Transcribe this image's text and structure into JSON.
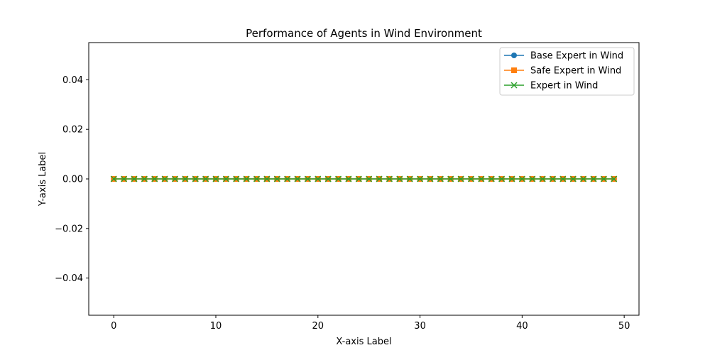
{
  "chart_data": {
    "type": "line",
    "title": "Performance of Agents in Wind Environment",
    "xlabel": "X-axis Label",
    "ylabel": "Y-axis Label",
    "xlim": [
      -2.45,
      51.45
    ],
    "ylim": [
      -0.055,
      0.055
    ],
    "xticks": [
      0,
      10,
      20,
      30,
      40,
      50
    ],
    "yticks": [
      -0.04,
      -0.02,
      0.0,
      0.02,
      0.04
    ],
    "ytick_labels": [
      "−0.04",
      "−0.02",
      "0.00",
      "0.02",
      "0.04"
    ],
    "grid": false,
    "legend_position": "top-right",
    "x": [
      0,
      1,
      2,
      3,
      4,
      5,
      6,
      7,
      8,
      9,
      10,
      11,
      12,
      13,
      14,
      15,
      16,
      17,
      18,
      19,
      20,
      21,
      22,
      23,
      24,
      25,
      26,
      27,
      28,
      29,
      30,
      31,
      32,
      33,
      34,
      35,
      36,
      37,
      38,
      39,
      40,
      41,
      42,
      43,
      44,
      45,
      46,
      47,
      48,
      49
    ],
    "series": [
      {
        "name": "Base Expert in Wind",
        "color": "#1f77b4",
        "marker": "circle",
        "values": [
          0,
          0,
          0,
          0,
          0,
          0,
          0,
          0,
          0,
          0,
          0,
          0,
          0,
          0,
          0,
          0,
          0,
          0,
          0,
          0,
          0,
          0,
          0,
          0,
          0,
          0,
          0,
          0,
          0,
          0,
          0,
          0,
          0,
          0,
          0,
          0,
          0,
          0,
          0,
          0,
          0,
          0,
          0,
          0,
          0,
          0,
          0,
          0,
          0,
          0
        ]
      },
      {
        "name": "Safe Expert in Wind",
        "color": "#ff7f0e",
        "marker": "square",
        "values": [
          0,
          0,
          0,
          0,
          0,
          0,
          0,
          0,
          0,
          0,
          0,
          0,
          0,
          0,
          0,
          0,
          0,
          0,
          0,
          0,
          0,
          0,
          0,
          0,
          0,
          0,
          0,
          0,
          0,
          0,
          0,
          0,
          0,
          0,
          0,
          0,
          0,
          0,
          0,
          0,
          0,
          0,
          0,
          0,
          0,
          0,
          0,
          0,
          0,
          0
        ]
      },
      {
        "name": "Expert in Wind",
        "color": "#2ca02c",
        "marker": "x",
        "values": [
          0,
          0,
          0,
          0,
          0,
          0,
          0,
          0,
          0,
          0,
          0,
          0,
          0,
          0,
          0,
          0,
          0,
          0,
          0,
          0,
          0,
          0,
          0,
          0,
          0,
          0,
          0,
          0,
          0,
          0,
          0,
          0,
          0,
          0,
          0,
          0,
          0,
          0,
          0,
          0,
          0,
          0,
          0,
          0,
          0,
          0,
          0,
          0,
          0,
          0
        ]
      }
    ]
  }
}
